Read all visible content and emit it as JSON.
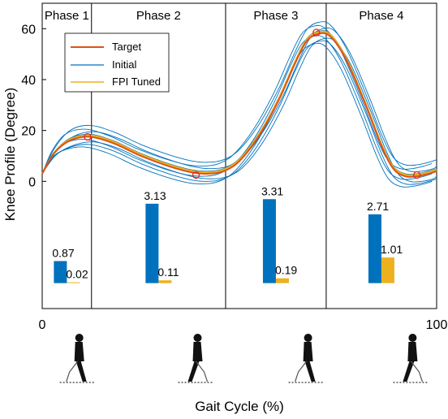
{
  "chart_data": {
    "type": "line",
    "xlabel": "Gait Cycle (%)",
    "ylabel": "Knee Profile (Degree)",
    "xlim": [
      0,
      100
    ],
    "ylim": [
      -50,
      70
    ],
    "x_ticks": [
      0,
      100
    ],
    "y_ticks": [
      0,
      20,
      40,
      60
    ],
    "grid": false,
    "legend_position": "top-left",
    "phases": [
      {
        "label": "Phase 1",
        "x_start": 0,
        "x_end": 12.5
      },
      {
        "label": "Phase 2",
        "x_start": 12.5,
        "x_end": 46.5
      },
      {
        "label": "Phase 3",
        "x_start": 46.5,
        "x_end": 72
      },
      {
        "label": "Phase 4",
        "x_start": 72,
        "x_end": 100
      }
    ],
    "legend": [
      {
        "name": "Target",
        "color": "#d95319"
      },
      {
        "name": "Initial",
        "color": "#0072bd"
      },
      {
        "name": "FPI Tuned",
        "color": "#edb120"
      }
    ],
    "series": [
      {
        "name": "Target",
        "color": "#d95319",
        "x": [
          0,
          3,
          7,
          12,
          18,
          25,
          32,
          38,
          42,
          46,
          50,
          55,
          60,
          64,
          67,
          70,
          73,
          77,
          82,
          86,
          89,
          92,
          95,
          98,
          100
        ],
        "y": [
          3,
          11,
          16,
          17.5,
          15,
          10,
          6,
          3.5,
          3,
          4,
          8,
          18,
          32,
          46,
          55,
          58,
          57,
          48,
          30,
          14,
          5,
          2,
          2,
          3,
          4
        ]
      }
    ],
    "initial_band": {
      "offsets": [
        -4,
        -3,
        -2,
        -1,
        1,
        2,
        3,
        4.5
      ],
      "color": "#0072bd"
    },
    "markers": [
      {
        "x": 11.5,
        "y": 17.5
      },
      {
        "x": 39,
        "y": 2.5
      },
      {
        "x": 69.5,
        "y": 58.5
      },
      {
        "x": 95,
        "y": 2.5
      }
    ],
    "bars": [
      {
        "phase": "Phase 1",
        "initial": 0.87,
        "tuned": 0.02,
        "initial_label": "0.87",
        "tuned_label": "0.02"
      },
      {
        "phase": "Phase 2",
        "initial": 3.13,
        "tuned": 0.11,
        "initial_label": "3.13",
        "tuned_label": "0.11"
      },
      {
        "phase": "Phase 3",
        "initial": 3.31,
        "tuned": 0.19,
        "initial_label": "3.31",
        "tuned_label": "0.19"
      },
      {
        "phase": "Phase 4",
        "initial": 2.71,
        "tuned": 1.01,
        "initial_label": "2.71",
        "tuned_label": "1.01"
      }
    ],
    "bar_axis_max": 3.31,
    "bar_baseline_y": -40,
    "bar_top_y": -7,
    "walkers": [
      {
        "x": 9
      },
      {
        "x": 39
      },
      {
        "x": 67
      },
      {
        "x": 93.5
      }
    ]
  }
}
